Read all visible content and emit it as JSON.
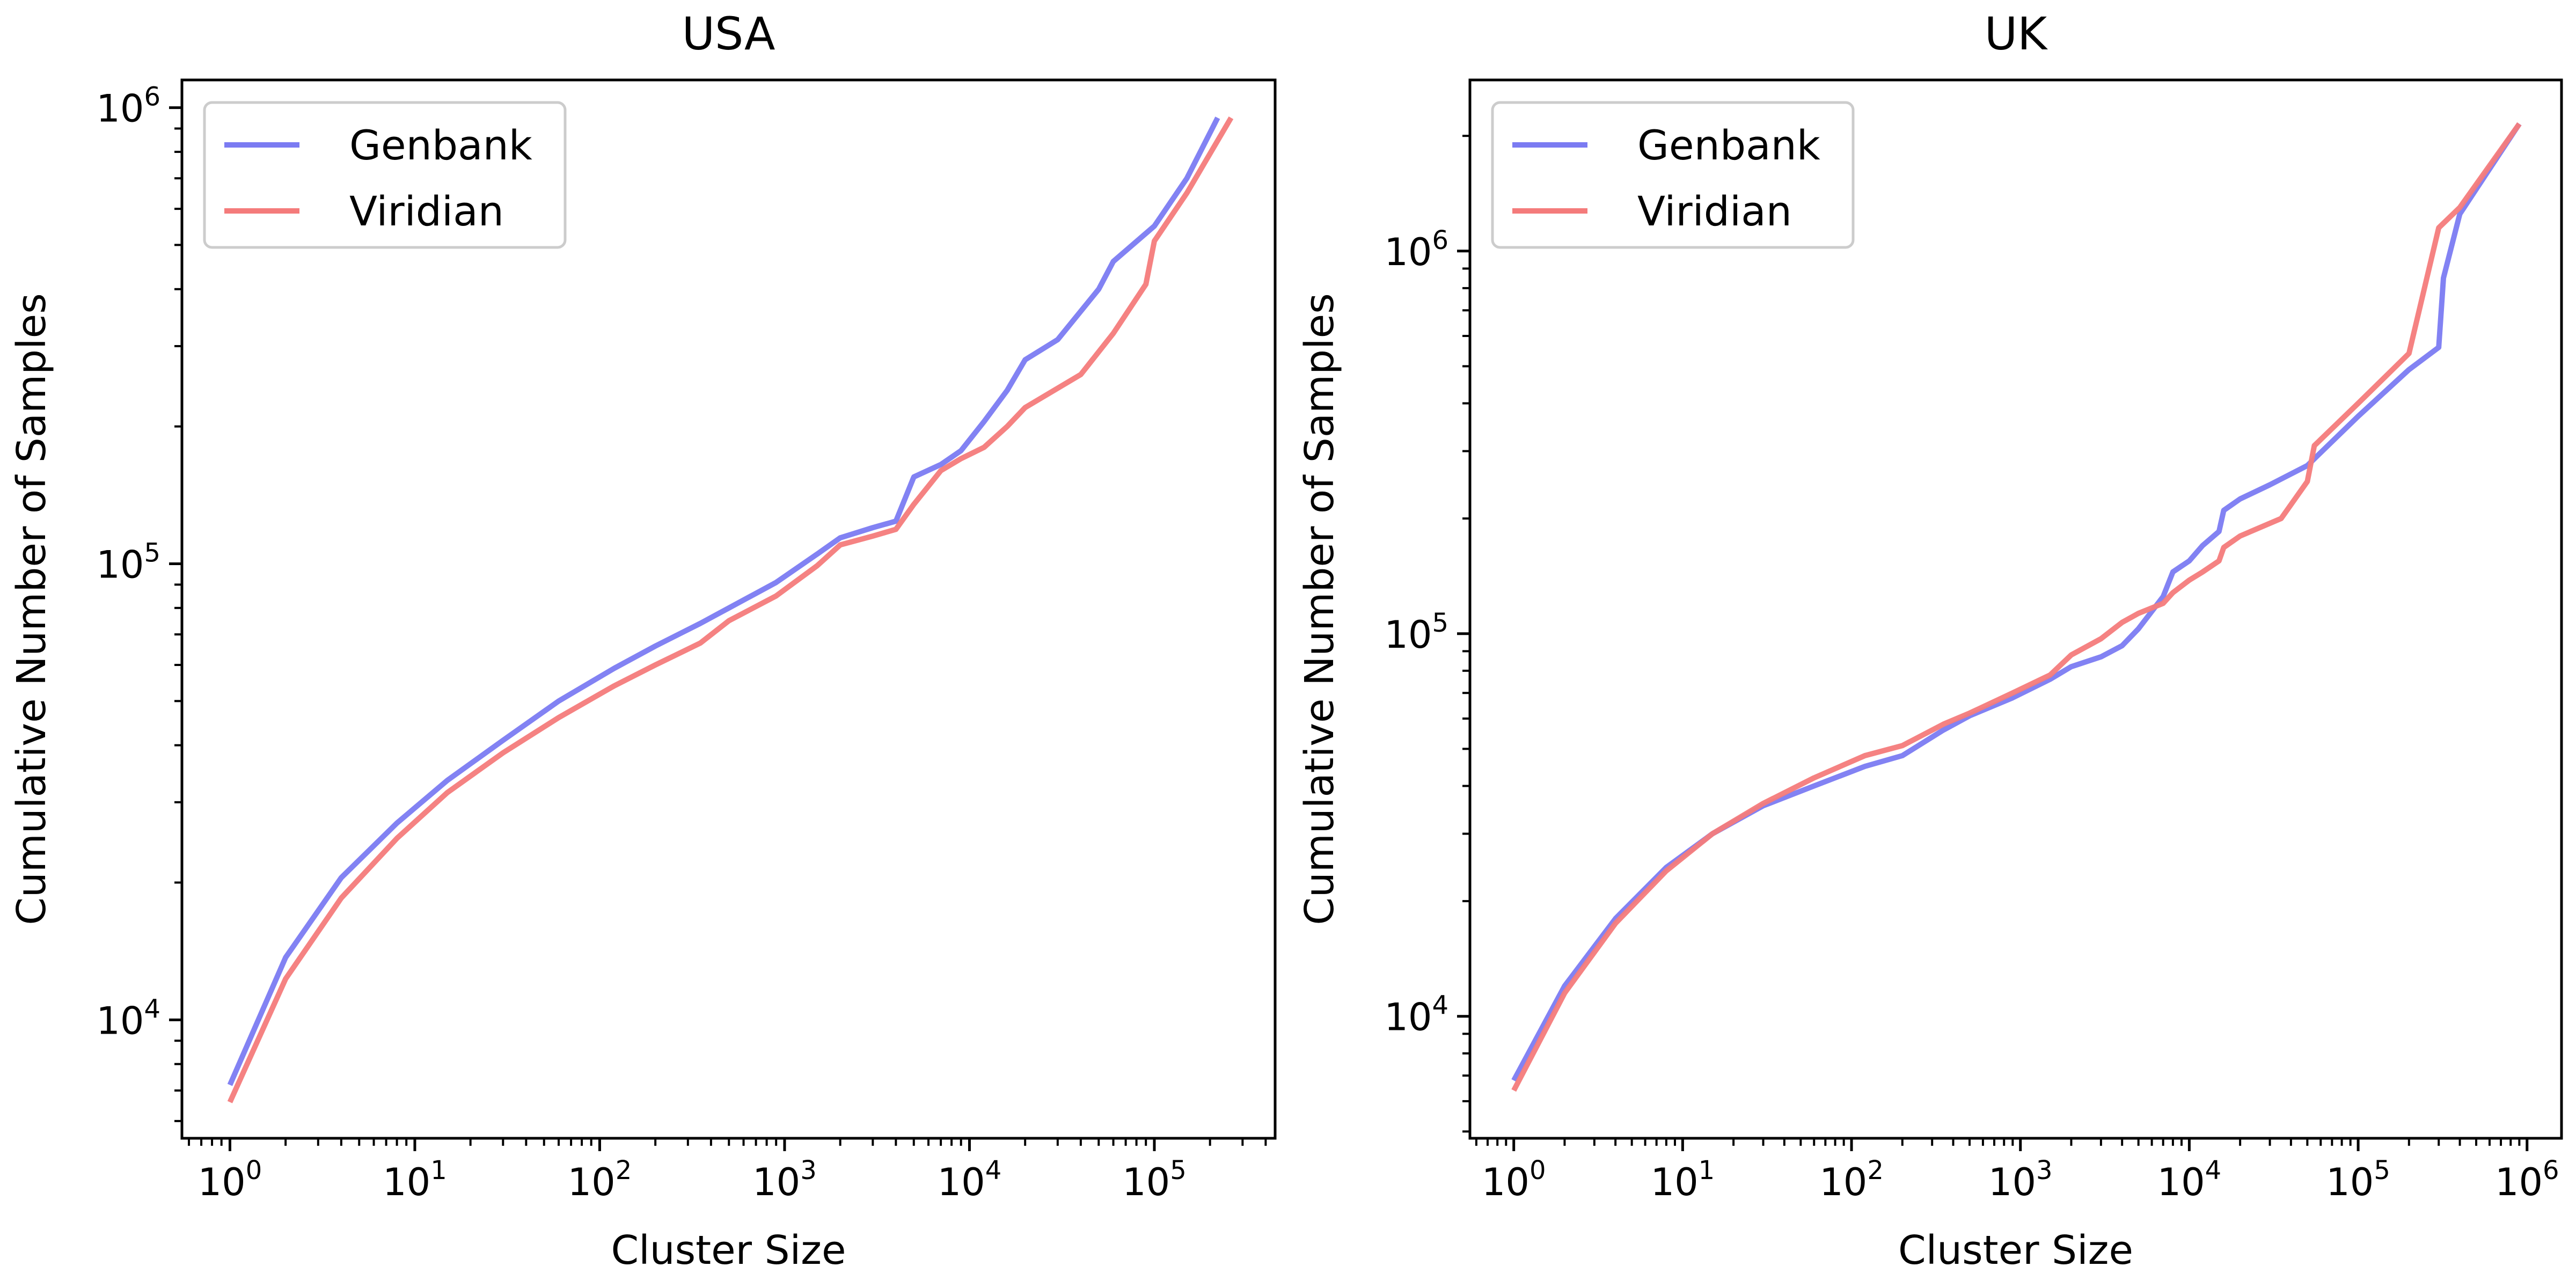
{
  "colors": {
    "genbank": "#7b7bf2",
    "viridian": "#f47b7b"
  },
  "chart_data": [
    {
      "type": "line",
      "title": "USA",
      "xlabel": "Cluster Size",
      "ylabel": "Cumulative Number of Samples",
      "xscale": "log",
      "yscale": "log",
      "xlim": [
        0.55,
        450000
      ],
      "ylim": [
        5500,
        1150000
      ],
      "x_ticks": [
        {
          "base": "10",
          "exp": "0"
        },
        {
          "base": "10",
          "exp": "1"
        },
        {
          "base": "10",
          "exp": "2"
        },
        {
          "base": "10",
          "exp": "3"
        },
        {
          "base": "10",
          "exp": "4"
        },
        {
          "base": "10",
          "exp": "5"
        }
      ],
      "y_ticks": [
        {
          "base": "10",
          "exp": "4"
        },
        {
          "base": "10",
          "exp": "5"
        },
        {
          "base": "10",
          "exp": "6"
        }
      ],
      "legend": "top-left",
      "grid": false,
      "series": [
        {
          "name": "Genbank",
          "color": "genbank",
          "x": [
            1,
            2,
            4,
            8,
            15,
            30,
            60,
            120,
            200,
            350,
            500,
            900,
            1500,
            2000,
            3000,
            4000,
            5000,
            7000,
            9000,
            12000,
            16000,
            20000,
            30000,
            50000,
            60000,
            100000,
            150000,
            220000
          ],
          "y": [
            7200,
            13700,
            20500,
            27000,
            33500,
            41000,
            50000,
            59000,
            66000,
            74000,
            80000,
            91000,
            105000,
            114000,
            120000,
            124000,
            155000,
            165000,
            177000,
            205000,
            240000,
            280000,
            310000,
            400000,
            460000,
            550000,
            700000,
            950000
          ]
        },
        {
          "name": "Viridian",
          "color": "viridian",
          "x": [
            1,
            2,
            4,
            8,
            15,
            30,
            60,
            120,
            200,
            350,
            500,
            900,
            1500,
            2000,
            3000,
            4000,
            5000,
            7000,
            9000,
            12000,
            16000,
            20000,
            40000,
            60000,
            90000,
            100000,
            150000,
            260000
          ],
          "y": [
            6600,
            12300,
            18500,
            25000,
            31500,
            38500,
            46000,
            54000,
            60000,
            67000,
            75000,
            85000,
            99000,
            110000,
            115000,
            119000,
            135000,
            160000,
            170000,
            180000,
            200000,
            220000,
            260000,
            320000,
            410000,
            510000,
            650000,
            950000
          ]
        }
      ]
    },
    {
      "type": "line",
      "title": "UK",
      "xlabel": "Cluster Size",
      "ylabel": "Cumulative Number of Samples",
      "xscale": "log",
      "yscale": "log",
      "xlim": [
        0.55,
        1600000
      ],
      "ylim": [
        4800,
        2800000
      ],
      "x_ticks": [
        {
          "base": "10",
          "exp": "0"
        },
        {
          "base": "10",
          "exp": "1"
        },
        {
          "base": "10",
          "exp": "2"
        },
        {
          "base": "10",
          "exp": "3"
        },
        {
          "base": "10",
          "exp": "4"
        },
        {
          "base": "10",
          "exp": "5"
        },
        {
          "base": "10",
          "exp": "6"
        }
      ],
      "y_ticks": [
        {
          "base": "10",
          "exp": "4"
        },
        {
          "base": "10",
          "exp": "5"
        },
        {
          "base": "10",
          "exp": "6"
        }
      ],
      "legend": "top-left",
      "grid": false,
      "series": [
        {
          "name": "Genbank",
          "color": "genbank",
          "x": [
            1,
            2,
            4,
            8,
            15,
            30,
            60,
            120,
            200,
            350,
            500,
            900,
            1500,
            2000,
            3000,
            4000,
            5000,
            7000,
            8000,
            10000,
            12000,
            15000,
            16000,
            20000,
            30000,
            50000,
            100000,
            200000,
            300000,
            320000,
            400000,
            900000
          ],
          "y": [
            6800,
            12000,
            18000,
            24500,
            30000,
            35500,
            40000,
            45000,
            48000,
            56000,
            61000,
            68000,
            76000,
            82000,
            87000,
            93000,
            103000,
            125000,
            145000,
            155000,
            170000,
            185000,
            210000,
            225000,
            245000,
            275000,
            370000,
            490000,
            560000,
            850000,
            1250000,
            2150000
          ]
        },
        {
          "name": "Viridian",
          "color": "viridian",
          "x": [
            1,
            2,
            4,
            8,
            15,
            30,
            60,
            120,
            200,
            350,
            500,
            900,
            1500,
            2000,
            3000,
            4000,
            5000,
            7000,
            8000,
            10000,
            12000,
            15000,
            16000,
            20000,
            35000,
            50000,
            55000,
            100000,
            200000,
            300000,
            400000,
            900000
          ],
          "y": [
            6400,
            11500,
            17500,
            24000,
            30000,
            36000,
            42000,
            48000,
            51000,
            58000,
            62000,
            70000,
            78000,
            88000,
            97000,
            107000,
            113000,
            120000,
            128000,
            138000,
            145000,
            155000,
            168000,
            180000,
            200000,
            250000,
            310000,
            400000,
            540000,
            1150000,
            1300000,
            2150000
          ]
        }
      ]
    }
  ]
}
